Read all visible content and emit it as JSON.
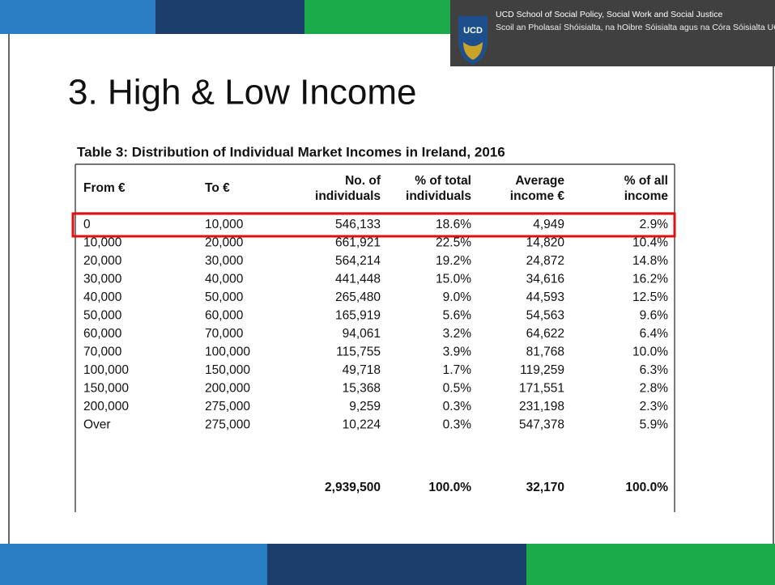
{
  "header": {
    "logo": "UCD",
    "lines": [
      "UCD School of Social Policy, Social Work and Social Justice",
      "Scoil an Pholasaí Shóisialta, na hOibre Sóisialta agus na Córa Sóisialta UCD"
    ]
  },
  "title": "3. High & Low Income",
  "table": {
    "caption": "Table 3: Distribution of Individual Market Incomes in Ireland, 2016",
    "columns": [
      [
        "From €"
      ],
      [
        "To €"
      ],
      [
        "No. of",
        "individuals"
      ],
      [
        "% of total",
        "individuals"
      ],
      [
        "Average",
        "income €"
      ],
      [
        "% of all",
        "income"
      ]
    ],
    "rows": [
      [
        "0",
        "10,000",
        "546,133",
        "18.6%",
        "4,949",
        "2.9%"
      ],
      [
        "10,000",
        "20,000",
        "661,921",
        "22.5%",
        "14,820",
        "10.4%"
      ],
      [
        "20,000",
        "30,000",
        "564,214",
        "19.2%",
        "24,872",
        "14.8%"
      ],
      [
        "30,000",
        "40,000",
        "441,448",
        "15.0%",
        "34,616",
        "16.2%"
      ],
      [
        "40,000",
        "50,000",
        "265,480",
        "9.0%",
        "44,593",
        "12.5%"
      ],
      [
        "50,000",
        "60,000",
        "165,919",
        "5.6%",
        "54,563",
        "9.6%"
      ],
      [
        "60,000",
        "70,000",
        "94,061",
        "3.2%",
        "64,622",
        "6.4%"
      ],
      [
        "70,000",
        "100,000",
        "115,755",
        "3.9%",
        "81,768",
        "10.0%"
      ],
      [
        "100,000",
        "150,000",
        "49,718",
        "1.7%",
        "119,259",
        "6.3%"
      ],
      [
        "150,000",
        "200,000",
        "15,368",
        "0.5%",
        "171,551",
        "2.8%"
      ],
      [
        "200,000",
        "275,000",
        "9,259",
        "0.3%",
        "231,198",
        "2.3%"
      ],
      [
        "Over",
        "275,000",
        "10,224",
        "0.3%",
        "547,378",
        "5.9%"
      ]
    ],
    "totals": [
      "2,939,500",
      "100.0%",
      "32,170",
      "100.0%"
    ]
  }
}
